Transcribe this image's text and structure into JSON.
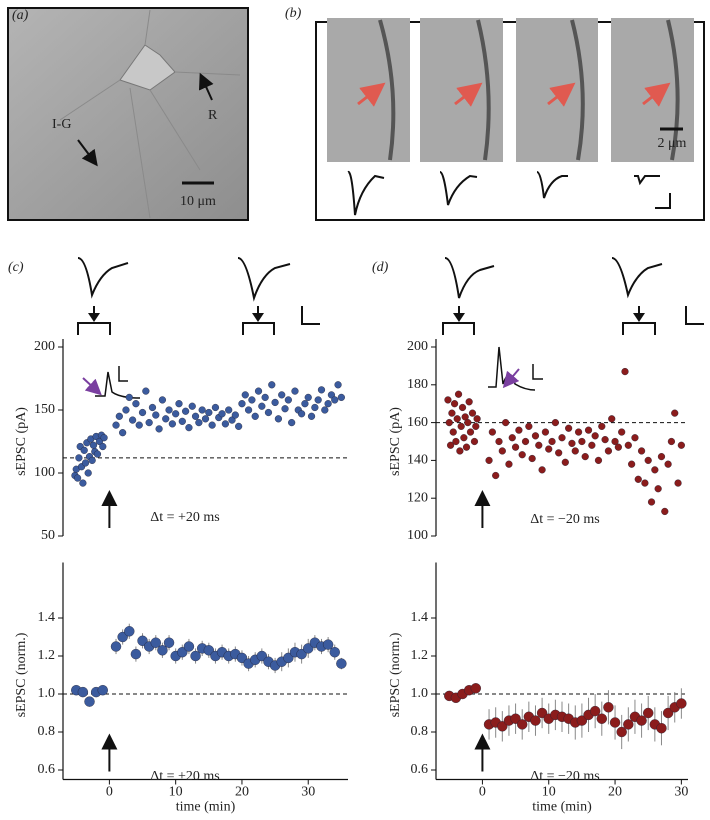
{
  "images": {
    "a": {
      "label": "(a)",
      "annotations": [
        "I-G",
        "R"
      ],
      "scale_bar": "10 μm"
    },
    "b": {
      "label": "(b)",
      "scale_bar": "2 μm"
    }
  },
  "chart_data": [
    {
      "type": "scatter",
      "label": "(c)",
      "ylabel": "sEPSC (pA)",
      "annotation": "Δt = +20 ms",
      "color": "#3b5b9e",
      "reference_line": 112,
      "stimulus_time": 0,
      "xlim": [
        -7,
        36
      ],
      "ylim": [
        50,
        200
      ],
      "yticks": [
        50,
        100,
        150,
        200
      ],
      "x": [
        -5.2,
        -5,
        -4.8,
        -4.6,
        -4.4,
        -4.2,
        -4,
        -3.8,
        -3.6,
        -3.4,
        -3.2,
        -3,
        -2.8,
        -2.6,
        -2.4,
        -2.2,
        -2,
        -1.8,
        -1.5,
        -1.2,
        -1,
        -0.8,
        1,
        1.5,
        2,
        2.5,
        3,
        3.5,
        4,
        4.5,
        5,
        5.5,
        6,
        6.5,
        7,
        7.5,
        8,
        8.5,
        9,
        9.5,
        10,
        10.5,
        11,
        11.5,
        12,
        12.5,
        13,
        13.5,
        14,
        14.5,
        15,
        15.5,
        16,
        16.5,
        17,
        17.5,
        18,
        18.5,
        19,
        19.5,
        20,
        20.5,
        21,
        21.5,
        22,
        22.5,
        23,
        23.5,
        24,
        24.5,
        25,
        25.5,
        26,
        26.5,
        27,
        27.5,
        28,
        28.5,
        29,
        29.5,
        30,
        30.5,
        31,
        31.5,
        32,
        32.5,
        33,
        33.5,
        34,
        34.5,
        35
      ],
      "values": [
        98,
        103,
        96,
        112,
        121,
        105,
        92,
        118,
        108,
        124,
        100,
        113,
        127,
        110,
        122,
        117,
        129,
        115,
        125,
        130,
        121,
        128,
        138,
        145,
        132,
        150,
        160,
        142,
        155,
        138,
        148,
        165,
        140,
        152,
        146,
        135,
        158,
        143,
        150,
        139,
        147,
        155,
        141,
        149,
        136,
        153,
        145,
        140,
        150,
        143,
        148,
        138,
        152,
        144,
        147,
        139,
        150,
        142,
        146,
        137,
        155,
        162,
        150,
        158,
        145,
        165,
        153,
        160,
        148,
        170,
        156,
        143,
        162,
        151,
        158,
        140,
        165,
        150,
        147,
        155,
        160,
        145,
        152,
        158,
        166,
        150,
        155,
        162,
        158,
        170,
        160
      ]
    },
    {
      "type": "errorbar",
      "xlabel": "time (min)",
      "ylabel": "sEPSC (norm.)",
      "annotation": "Δt = +20 ms",
      "color": "#3b5b9e",
      "reference_line": 1,
      "stimulus_time": 0,
      "xlim": [
        -7,
        36
      ],
      "xticks": [
        0,
        10,
        20,
        30
      ],
      "ylim": [
        0.55,
        1.65
      ],
      "yticks": [
        0.6,
        0.8,
        {
          "value": 1,
          "label": "1.0"
        },
        1.2,
        1.4
      ],
      "x": [
        -5,
        -4,
        -3,
        -2,
        -1,
        1,
        2,
        3,
        4,
        5,
        6,
        7,
        8,
        9,
        10,
        11,
        12,
        13,
        14,
        15,
        16,
        17,
        18,
        19,
        20,
        21,
        22,
        23,
        24,
        25,
        26,
        27,
        28,
        29,
        30,
        31,
        32,
        33,
        34,
        35
      ],
      "values": [
        1.02,
        1.01,
        0.96,
        1.01,
        1.02,
        1.25,
        1.3,
        1.33,
        1.21,
        1.28,
        1.25,
        1.27,
        1.23,
        1.27,
        1.2,
        1.22,
        1.25,
        1.2,
        1.24,
        1.23,
        1.2,
        1.22,
        1.2,
        1.21,
        1.19,
        1.16,
        1.18,
        1.2,
        1.17,
        1.15,
        1.17,
        1.19,
        1.22,
        1.21,
        1.24,
        1.27,
        1.25,
        1.26,
        1.22,
        1.16
      ],
      "errors": [
        0.02,
        0.02,
        0.02,
        0.02,
        0.02,
        0.04,
        0.04,
        0.04,
        0.04,
        0.04,
        0.04,
        0.04,
        0.04,
        0.04,
        0.04,
        0.04,
        0.04,
        0.04,
        0.04,
        0.04,
        0.04,
        0.04,
        0.04,
        0.04,
        0.04,
        0.04,
        0.04,
        0.04,
        0.04,
        0.04,
        0.05,
        0.05,
        0.05,
        0.05,
        0.05,
        0.04,
        0.04,
        0.04,
        0.04,
        0.03
      ]
    },
    {
      "type": "scatter",
      "label": "(d)",
      "ylabel": "sEPSC (pA)",
      "annotation": "Δt = −20 ms",
      "color": "#8b1c1c",
      "reference_line": 160,
      "stimulus_time": 0,
      "xlim": [
        -7,
        31
      ],
      "ylim": [
        100,
        200
      ],
      "yticks": [
        100,
        120,
        140,
        160,
        180,
        200
      ],
      "x": [
        -5.2,
        -5,
        -4.8,
        -4.6,
        -4.4,
        -4.2,
        -4,
        -3.8,
        -3.6,
        -3.4,
        -3.2,
        -3,
        -2.8,
        -2.6,
        -2.4,
        -2.2,
        -2,
        -1.8,
        -1.5,
        -1.2,
        -1,
        -0.8,
        1,
        1.5,
        2,
        2.5,
        3,
        3.5,
        4,
        4.5,
        5,
        5.5,
        6,
        6.5,
        7,
        7.5,
        8,
        8.5,
        9,
        9.5,
        10,
        10.5,
        11,
        11.5,
        12,
        12.5,
        13,
        13.5,
        14,
        14.5,
        15,
        15.5,
        16,
        16.5,
        17,
        17.5,
        18,
        18.5,
        19,
        19.5,
        20,
        20.5,
        21,
        21.5,
        22,
        22.5,
        23,
        23.5,
        24,
        24.5,
        25,
        25.5,
        26,
        26.5,
        27,
        27.5,
        28,
        28.5,
        29,
        29.5,
        30
      ],
      "values": [
        172,
        160,
        148,
        165,
        155,
        170,
        150,
        162,
        175,
        145,
        158,
        168,
        152,
        163,
        147,
        160,
        171,
        155,
        165,
        150,
        158,
        162,
        140,
        155,
        132,
        150,
        145,
        160,
        138,
        152,
        147,
        156,
        143,
        150,
        158,
        141,
        153,
        148,
        135,
        155,
        146,
        150,
        160,
        144,
        152,
        139,
        157,
        149,
        145,
        155,
        150,
        142,
        156,
        148,
        153,
        140,
        158,
        151,
        145,
        162,
        150,
        147,
        155,
        187,
        148,
        138,
        152,
        130,
        145,
        128,
        140,
        118,
        135,
        125,
        142,
        113,
        138,
        150,
        165,
        128,
        148
      ]
    },
    {
      "type": "errorbar",
      "xlabel": "time (min)",
      "ylabel": "sEPSC (norm.)",
      "annotation": "Δt = −20 ms",
      "color": "#8b1c1c",
      "reference_line": 1,
      "stimulus_time": 0,
      "xlim": [
        -7,
        31
      ],
      "xticks": [
        0,
        10,
        20,
        30
      ],
      "ylim": [
        0.55,
        1.65
      ],
      "yticks": [
        0.6,
        0.8,
        {
          "value": 1,
          "label": "1.0"
        },
        1.2,
        1.4
      ],
      "x": [
        -5,
        -4,
        -3,
        -2,
        -1,
        1,
        2,
        3,
        4,
        5,
        6,
        7,
        8,
        9,
        10,
        11,
        12,
        13,
        14,
        15,
        16,
        17,
        18,
        19,
        20,
        21,
        22,
        23,
        24,
        25,
        26,
        27,
        28,
        29,
        30
      ],
      "values": [
        0.99,
        0.98,
        1.0,
        1.02,
        1.03,
        0.84,
        0.85,
        0.83,
        0.86,
        0.87,
        0.84,
        0.88,
        0.86,
        0.9,
        0.87,
        0.89,
        0.88,
        0.87,
        0.85,
        0.86,
        0.89,
        0.91,
        0.87,
        0.93,
        0.85,
        0.8,
        0.84,
        0.88,
        0.86,
        0.9,
        0.84,
        0.82,
        0.9,
        0.93,
        0.95
      ],
      "errors": [
        0.02,
        0.02,
        0.02,
        0.02,
        0.02,
        0.08,
        0.08,
        0.08,
        0.08,
        0.08,
        0.08,
        0.08,
        0.08,
        0.08,
        0.08,
        0.08,
        0.08,
        0.08,
        0.09,
        0.09,
        0.09,
        0.09,
        0.09,
        0.09,
        0.09,
        0.09,
        0.09,
        0.09,
        0.09,
        0.09,
        0.09,
        0.09,
        0.09,
        0.08,
        0.08
      ]
    }
  ]
}
